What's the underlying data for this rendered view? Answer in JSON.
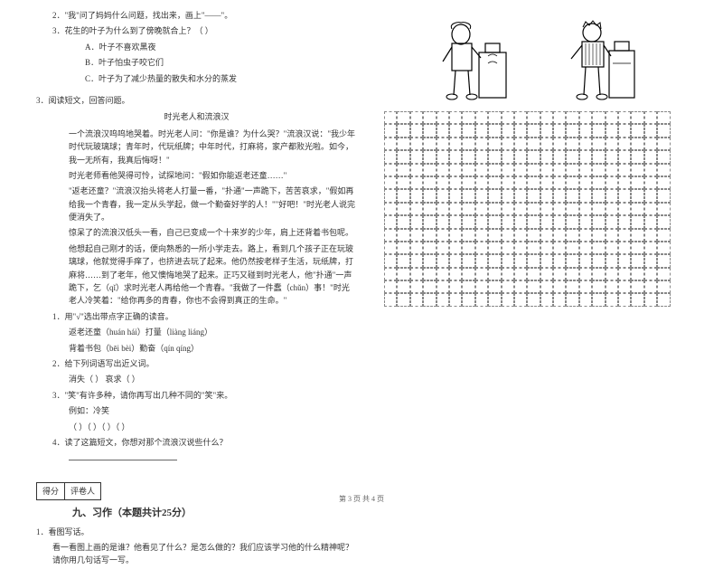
{
  "left": {
    "q2": "2．\"我\"问了妈妈什么问题，找出来，画上\"——\"。",
    "q3": "3．花生的叶子为什么到了傍晚就合上？（    ）",
    "q3a": "A．叶子不喜欢黑夜",
    "q3b": "B．叶子怕虫子咬它们",
    "q3c": "C．叶子为了减少热量的散失和水分的蒸发",
    "reading_num": "3．阅读短文，回答问题。",
    "story_title": "时光老人和流浪汉",
    "p1": "一个流浪汉呜呜地哭着。时光老人问：\"你是谁？为什么哭？\"流浪汉说：\"我少年时代玩玻璃球；青年时，代玩纸牌；中年时代，打麻将，家产都败光啦。如今，我一无所有，我真后悔呀！\"",
    "p2": "时光老师看他哭得可怜，试探地问：\"假如你能返老还童……\"",
    "p3": "\"返老还童？\"流浪汉抬头将老人打量一番，\"扑通\"一声跪下，苦苦哀求，\"假如再给我一个青春，我一定从头学起，做一个勤奋好学的人！\"\"好吧！\"时光老人说完便消失了。",
    "p4": "惊呆了的流浪汉低头一看，自己已变成一个十来岁的少年，肩上还背着书包呢。",
    "p5": "他想起自己刚才的话，便向熟悉的一所小学走去。路上，看到几个孩子正在玩玻璃球，他就觉得手痒了，也挤进去玩了起来。他仍然按老样子生活，玩纸牌，打麻将……到了老年，他又懊悔地哭了起来。正巧又碰到时光老人，他\"扑通\"一声跪下，乞（qǐ）求时光老人再给他一个青春。\"我做了一件蠢（chǔn）事！\"时光老人冷笑着：\"给你再多的青春，你也不会得到真正的生命。\"",
    "sub1": "1．用\"√\"选出带点字正确的读音。",
    "sub1a": "返老还童（huán  hái）打量（liàng  liáng）",
    "sub1b": "背着书包（bēi  bèi）勤奋（qín  qíng）",
    "sub2": "2．给下列词语写出近义词。",
    "sub2a": "消失（          ）    哀求（          ）",
    "sub3": "3．\"笑\"有许多种，请你再写出几种不同的\"笑\"来。",
    "sub3a": "例如：冷笑",
    "sub3b": "（        ）（        ）（        ）（        ）",
    "sub4": "4．读了这篇短文，你想对那个流浪汉说些什么？",
    "score_label1": "得分",
    "score_label2": "评卷人",
    "section9": "九、习作（本题共计25分）",
    "writing1": "1．看图写话。",
    "writing1_desc": "看一看图上画的是谁？他看见了什么？是怎么做的？我们应该学习他的什么精神呢？请你用几句话写一写。"
  },
  "grid": {
    "rows": 15,
    "cols": 22
  },
  "footer": "第 3 页  共 4 页",
  "colors": {
    "text": "#333333",
    "grid_border": "#888888",
    "bg": "#ffffff"
  }
}
